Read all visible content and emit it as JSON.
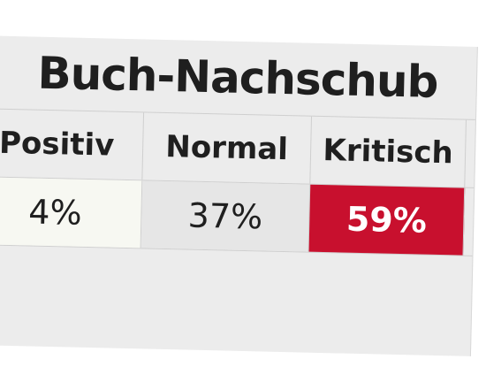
{
  "header": {
    "title": "Buch-Nachschub"
  },
  "table": {
    "columns": [
      "Positiv",
      "Normal",
      "Kritisch"
    ],
    "rows": [
      [
        "4%",
        "37%",
        "59%"
      ]
    ]
  }
}
